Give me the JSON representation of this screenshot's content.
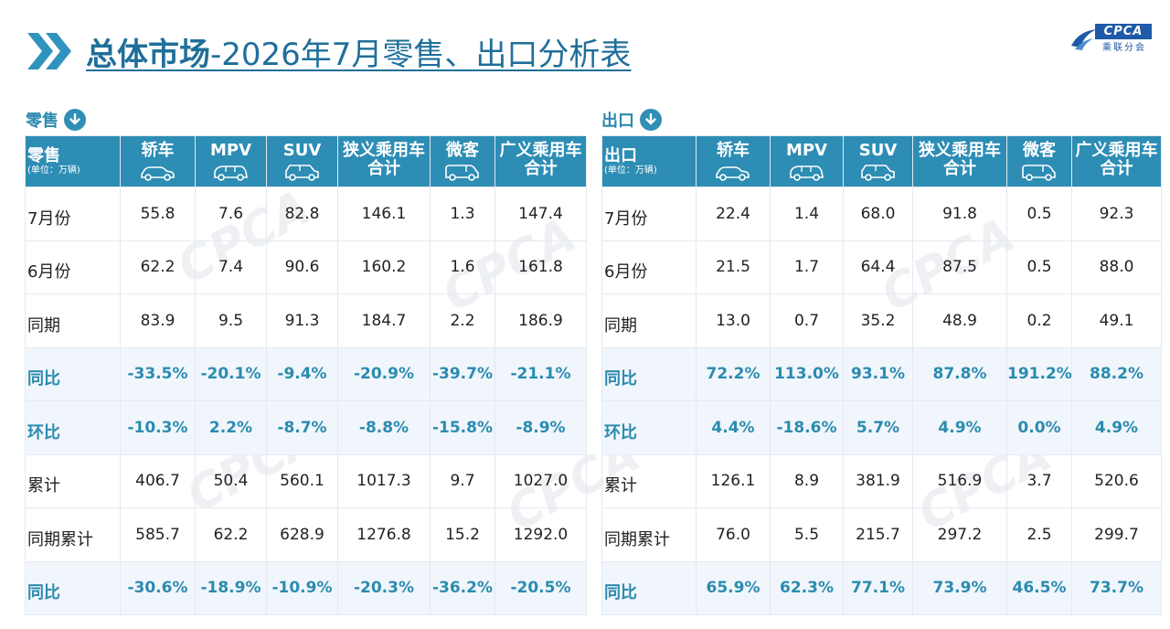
{
  "title": {
    "part1": "总体市场",
    "part2": "-2026年7月零售、出口分析表"
  },
  "logo": {
    "en": "CPCA",
    "cn": "乘联分会"
  },
  "colors": {
    "primary": "#2d8db4",
    "title": "#1f6f9a",
    "pct_text": "#2b8bb0",
    "pct_bg": "#f0f6fb"
  },
  "watermark": "CPCA",
  "retail": {
    "section_label": "零售",
    "corner_label": "零售",
    "unit_label": "(单位：万辆)",
    "headers": [
      {
        "line1": "轿车",
        "line2": "",
        "icon": "sedan-icon"
      },
      {
        "line1": "MPV",
        "line2": "",
        "icon": "mpv-icon"
      },
      {
        "line1": "SUV",
        "line2": "",
        "icon": "suv-icon"
      },
      {
        "line1": "狭义乘用车",
        "line2": "合计",
        "icon": ""
      },
      {
        "line1": "微客",
        "line2": "",
        "icon": "minivan-icon"
      },
      {
        "line1": "广义乘用车",
        "line2": "合计",
        "icon": ""
      }
    ],
    "rows": [
      {
        "label": "7月份",
        "values": [
          "55.8",
          "7.6",
          "82.8",
          "146.1",
          "1.3",
          "147.4"
        ],
        "pct": false
      },
      {
        "label": "6月份",
        "values": [
          "62.2",
          "7.4",
          "90.6",
          "160.2",
          "1.6",
          "161.8"
        ],
        "pct": false
      },
      {
        "label": "同期",
        "values": [
          "83.9",
          "9.5",
          "91.3",
          "184.7",
          "2.2",
          "186.9"
        ],
        "pct": false
      },
      {
        "label": "同比",
        "values": [
          "-33.5%",
          "-20.1%",
          "-9.4%",
          "-20.9%",
          "-39.7%",
          "-21.1%"
        ],
        "pct": true
      },
      {
        "label": "环比",
        "values": [
          "-10.3%",
          "2.2%",
          "-8.7%",
          "-8.8%",
          "-15.8%",
          "-8.9%"
        ],
        "pct": true
      },
      {
        "label": "累计",
        "values": [
          "406.7",
          "50.4",
          "560.1",
          "1017.3",
          "9.7",
          "1027.0"
        ],
        "pct": false
      },
      {
        "label": "同期累计",
        "values": [
          "585.7",
          "62.2",
          "628.9",
          "1276.8",
          "15.2",
          "1292.0"
        ],
        "pct": false
      },
      {
        "label": "同比",
        "values": [
          "-30.6%",
          "-18.9%",
          "-10.9%",
          "-20.3%",
          "-36.2%",
          "-20.5%"
        ],
        "pct": true
      }
    ]
  },
  "export": {
    "section_label": "出口",
    "corner_label": "出口",
    "unit_label": "(单位：万辆)",
    "headers": [
      {
        "line1": "轿车",
        "line2": "",
        "icon": "sedan-icon"
      },
      {
        "line1": "MPV",
        "line2": "",
        "icon": "mpv-icon"
      },
      {
        "line1": "SUV",
        "line2": "",
        "icon": "suv-icon"
      },
      {
        "line1": "狭义乘用车",
        "line2": "合计",
        "icon": ""
      },
      {
        "line1": "微客",
        "line2": "",
        "icon": "minivan-icon"
      },
      {
        "line1": "广义乘用车",
        "line2": "合计",
        "icon": ""
      }
    ],
    "rows": [
      {
        "label": "7月份",
        "values": [
          "22.4",
          "1.4",
          "68.0",
          "91.8",
          "0.5",
          "92.3"
        ],
        "pct": false
      },
      {
        "label": "6月份",
        "values": [
          "21.5",
          "1.7",
          "64.4",
          "87.5",
          "0.5",
          "88.0"
        ],
        "pct": false
      },
      {
        "label": "同期",
        "values": [
          "13.0",
          "0.7",
          "35.2",
          "48.9",
          "0.2",
          "49.1"
        ],
        "pct": false
      },
      {
        "label": "同比",
        "values": [
          "72.2%",
          "113.0%",
          "93.1%",
          "87.8%",
          "191.2%",
          "88.2%"
        ],
        "pct": true
      },
      {
        "label": "环比",
        "values": [
          "4.4%",
          "-18.6%",
          "5.7%",
          "4.9%",
          "0.0%",
          "4.9%"
        ],
        "pct": true
      },
      {
        "label": "累计",
        "values": [
          "126.1",
          "8.9",
          "381.9",
          "516.9",
          "3.7",
          "520.6"
        ],
        "pct": false
      },
      {
        "label": "同期累计",
        "values": [
          "76.0",
          "5.5",
          "215.7",
          "297.2",
          "2.5",
          "299.7"
        ],
        "pct": false
      },
      {
        "label": "同比",
        "values": [
          "65.9%",
          "62.3%",
          "77.1%",
          "73.9%",
          "46.5%",
          "73.7%"
        ],
        "pct": true
      }
    ]
  }
}
